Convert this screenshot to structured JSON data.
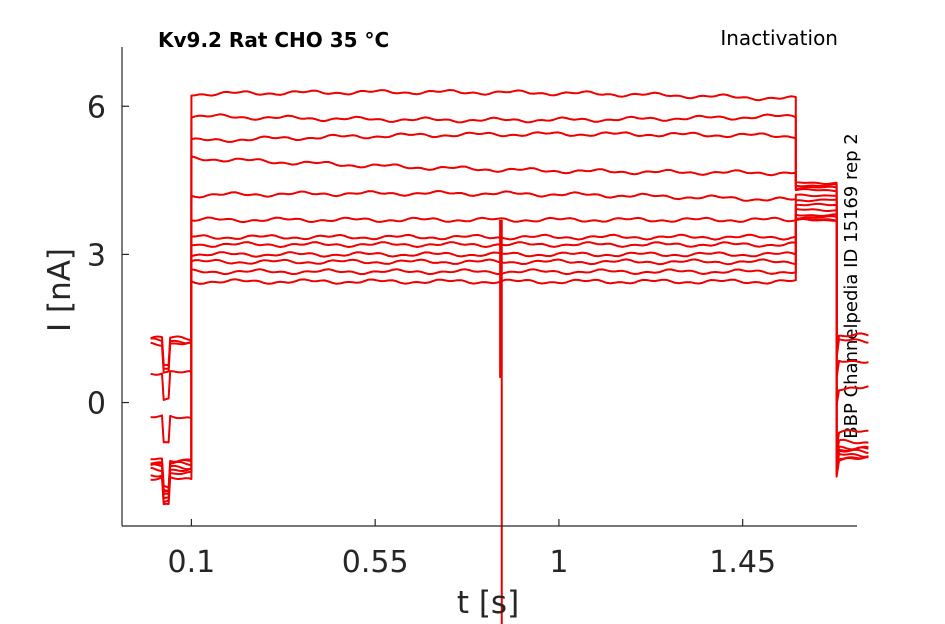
{
  "chart_data": {
    "type": "line",
    "title": "Kv9.2  Rat  CHO  35 °C",
    "mode_label": "Inactivation",
    "side_label": "BBP Channelpedia ID 15169 rep 2",
    "xlabel": "t [s]",
    "ylabel": "I [nA]",
    "x_ticks": [
      "0.1",
      "0.55",
      "1",
      "1.45"
    ],
    "y_ticks": [
      "0",
      "3",
      "6"
    ],
    "xlim": [
      -0.07,
      1.73
    ],
    "ylim": [
      -2.5,
      7.2
    ],
    "grid": false,
    "legend": "none",
    "color": "#ee0000",
    "segments": {
      "prepulse": [
        0.0,
        0.1
      ],
      "step": [
        0.1,
        1.58
      ],
      "tail": [
        1.58,
        1.68
      ],
      "after": [
        1.68,
        1.76
      ]
    },
    "artifact": {
      "x": 0.86,
      "ymin": -4.5,
      "ymax": 3.7
    },
    "series": [
      {
        "start": 6.25,
        "end": 6.15,
        "tail": 4.45,
        "prepulse": 1.3,
        "after": 1.35
      },
      {
        "start": 5.8,
        "end": 5.8,
        "tail": 4.4,
        "prepulse": 1.25,
        "after": 1.25
      },
      {
        "start": 5.3,
        "end": 5.4,
        "tail": 4.35,
        "prepulse": 1.2,
        "after": 0.85
      },
      {
        "start": 4.95,
        "end": 4.65,
        "tail": 4.3,
        "prepulse": 0.6,
        "after": 0.3
      },
      {
        "start": 4.2,
        "end": 4.1,
        "tail": 4.2,
        "prepulse": -0.3,
        "after": -0.6
      },
      {
        "start": 3.7,
        "end": 3.7,
        "tail": 4.1,
        "prepulse": -1.15,
        "after": -0.8
      },
      {
        "start": 3.35,
        "end": 3.35,
        "tail": 4.0,
        "prepulse": -1.2,
        "after": -0.9
      },
      {
        "start": 3.2,
        "end": 3.2,
        "tail": 3.9,
        "prepulse": -1.25,
        "after": -0.95
      },
      {
        "start": 3.0,
        "end": 3.0,
        "tail": 3.8,
        "prepulse": -1.3,
        "after": -1.0
      },
      {
        "start": 2.85,
        "end": 2.85,
        "tail": 3.75,
        "prepulse": -1.35,
        "after": -1.05
      },
      {
        "start": 2.65,
        "end": 2.65,
        "tail": 3.7,
        "prepulse": -1.45,
        "after": -1.1
      },
      {
        "start": 2.45,
        "end": 2.45,
        "tail": 3.7,
        "prepulse": -1.55,
        "after": -1.15
      }
    ]
  }
}
